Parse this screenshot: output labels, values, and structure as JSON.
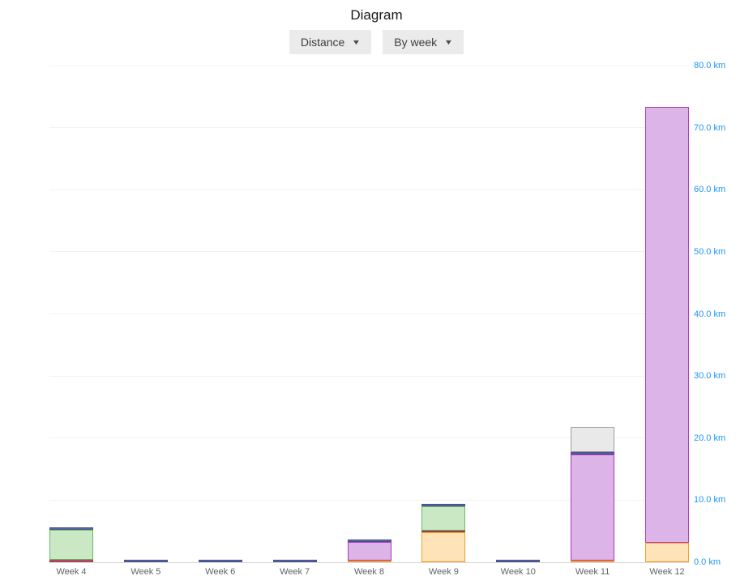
{
  "page": {
    "title": "Diagram"
  },
  "controls": {
    "metric_dropdown": {
      "label": "Distance",
      "caret_icon": "▼"
    },
    "grouping_dropdown": {
      "label": "By week",
      "caret_icon": "▼"
    }
  },
  "axis": {
    "y_tick_labels": [
      "0.0 km",
      "10.0 km",
      "20.0 km",
      "30.0 km",
      "40.0 km",
      "50.0 km",
      "60.0 km",
      "70.0 km",
      "80.0 km"
    ],
    "y_label_color": "#2196F3",
    "x_label_color": "#5F6368",
    "gridline_color": "#F2F2F2",
    "baseline_color": "#D9D9D9"
  },
  "chart_data": {
    "type": "bar",
    "stacked": true,
    "title": "Diagram",
    "xlabel": "",
    "ylabel": "",
    "unit": "km",
    "ylim": [
      0,
      80
    ],
    "ytick_step": 10,
    "yaxis_side": "right",
    "grid": true,
    "legend_position": "none",
    "categories": [
      "Week 4",
      "Week 5",
      "Week 6",
      "Week 7",
      "Week 8",
      "Week 9",
      "Week 10",
      "Week 11",
      "Week 12"
    ],
    "series": [
      {
        "name": "orange",
        "fill": "#FDE3B7",
        "stroke": "#F59D23",
        "values": [
          0,
          0,
          0,
          0,
          0.3,
          4.8,
          0,
          0.2,
          3.1
        ]
      },
      {
        "name": "red",
        "fill": "#C05C70",
        "stroke": "#A13B52",
        "values": [
          0.4,
          0,
          0,
          0,
          0,
          0.3,
          0,
          0,
          0
        ]
      },
      {
        "name": "green",
        "fill": "#CBE8C5",
        "stroke": "#63BB67",
        "values": [
          4.8,
          0,
          0,
          0,
          0,
          3.9,
          0,
          0,
          0
        ]
      },
      {
        "name": "purple",
        "fill": "#DCB4E7",
        "stroke": "#AC39BD",
        "values": [
          0,
          0,
          0,
          0,
          3.0,
          0,
          0,
          17.2,
          70.2
        ]
      },
      {
        "name": "blue",
        "fill": "#5A64A3",
        "stroke": "#47518F",
        "values": [
          0.4,
          0.4,
          0.4,
          0.4,
          0.4,
          0.4,
          0.4,
          0.4,
          0
        ]
      },
      {
        "name": "gray",
        "fill": "#E9E9E9",
        "stroke": "#9D9D9D",
        "values": [
          0,
          0,
          0,
          0,
          0,
          0,
          0,
          4.0,
          0
        ]
      }
    ]
  }
}
